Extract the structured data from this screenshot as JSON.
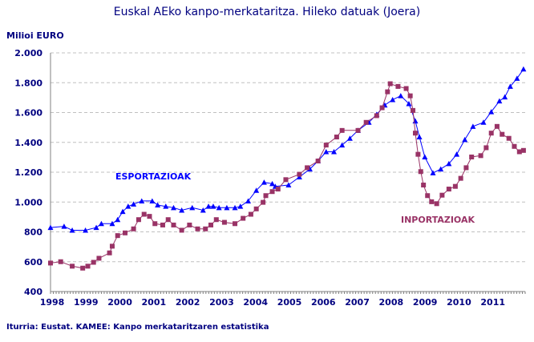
{
  "chart_data": {
    "type": "line",
    "title": "Euskal AEko kanpo-merkataritza. Hileko datuak (Joera)",
    "ylabel": "Milioi EURO",
    "xlabel": "",
    "source": "Iturria: Eustat. KAMEE: Kanpo merkataritzaren estatistika",
    "xlim": [
      1998,
      2012
    ],
    "ylim": [
      400,
      2000
    ],
    "x_ticks": [
      "1998",
      "1999",
      "2000",
      "2001",
      "2002",
      "2003",
      "2004",
      "2005",
      "2006",
      "2007",
      "2008",
      "2009",
      "2010",
      "2011"
    ],
    "y_ticks": [
      "400",
      "600",
      "800",
      "1.000",
      "1.200",
      "1.400",
      "1.600",
      "1.800",
      "2.000"
    ],
    "grid": "horizontal dashed",
    "legend": "inline labels",
    "series": [
      {
        "name": "ESPORTAZIOAK",
        "color": "#0000FF",
        "marker": "triangle",
        "x": [
          1998.0,
          1998.4,
          1998.64,
          1999.03,
          1999.35,
          1999.5,
          1999.82,
          1999.98,
          2000.13,
          2000.29,
          2000.45,
          2000.69,
          2001.0,
          2001.16,
          2001.4,
          2001.63,
          2001.87,
          2002.18,
          2002.5,
          2002.66,
          2002.8,
          2002.97,
          2003.2,
          2003.44,
          2003.6,
          2003.83,
          2004.07,
          2004.3,
          2004.54,
          2004.63,
          2005.02,
          2005.34,
          2005.65,
          2005.89,
          2006.13,
          2006.36,
          2006.6,
          2006.83,
          2007.07,
          2007.39,
          2007.62,
          2007.86,
          2008.09,
          2008.33,
          2008.57,
          2008.76,
          2008.88,
          2009.04,
          2009.28,
          2009.51,
          2009.75,
          2009.98,
          2010.22,
          2010.46,
          2010.77,
          2011.0,
          2011.24,
          2011.4,
          2011.56,
          2011.76,
          2011.95
        ],
        "y": [
          829,
          837,
          811,
          811,
          829,
          855,
          855,
          882,
          936,
          971,
          986,
          1007,
          1007,
          980,
          971,
          962,
          945,
          962,
          945,
          971,
          971,
          962,
          962,
          962,
          971,
          1007,
          1078,
          1132,
          1123,
          1105,
          1114,
          1168,
          1221,
          1275,
          1337,
          1337,
          1382,
          1427,
          1480,
          1534,
          1587,
          1650,
          1686,
          1712,
          1659,
          1543,
          1436,
          1302,
          1195,
          1221,
          1257,
          1320,
          1418,
          1507,
          1534,
          1605,
          1677,
          1704,
          1775,
          1829,
          1891
        ]
      },
      {
        "name": "INPORTAZIOAK",
        "color": "#993366",
        "marker": "square",
        "x": [
          1998.0,
          1998.3,
          1998.64,
          1998.95,
          1999.1,
          1999.27,
          1999.43,
          1999.74,
          1999.82,
          1999.98,
          2000.2,
          2000.45,
          2000.6,
          2000.76,
          2000.92,
          2001.08,
          2001.31,
          2001.47,
          2001.63,
          2001.87,
          2002.1,
          2002.34,
          2002.57,
          2002.73,
          2002.89,
          2003.13,
          2003.44,
          2003.68,
          2003.91,
          2004.07,
          2004.27,
          2004.35,
          2004.54,
          2004.71,
          2004.94,
          2005.34,
          2005.57,
          2005.89,
          2006.13,
          2006.44,
          2006.6,
          2007.07,
          2007.31,
          2007.62,
          2007.78,
          2007.94,
          2008.02,
          2008.25,
          2008.49,
          2008.61,
          2008.69,
          2008.76,
          2008.84,
          2008.92,
          2009.0,
          2009.12,
          2009.24,
          2009.39,
          2009.55,
          2009.75,
          2009.94,
          2010.1,
          2010.26,
          2010.42,
          2010.69,
          2010.85,
          2011.0,
          2011.17,
          2011.32,
          2011.52,
          2011.68,
          2011.83,
          2011.95
        ],
        "y": [
          591,
          600,
          570,
          557,
          570,
          596,
          623,
          659,
          704,
          775,
          793,
          820,
          882,
          918,
          904,
          855,
          846,
          882,
          846,
          811,
          846,
          820,
          820,
          846,
          882,
          864,
          855,
          891,
          918,
          954,
          998,
          1043,
          1070,
          1087,
          1150,
          1186,
          1230,
          1275,
          1382,
          1436,
          1480,
          1480,
          1534,
          1579,
          1632,
          1739,
          1793,
          1775,
          1761,
          1712,
          1614,
          1462,
          1320,
          1204,
          1114,
          1043,
          1002,
          989,
          1046,
          1087,
          1105,
          1159,
          1230,
          1302,
          1311,
          1364,
          1462,
          1507,
          1454,
          1427,
          1373,
          1337,
          1346
        ]
      }
    ]
  }
}
